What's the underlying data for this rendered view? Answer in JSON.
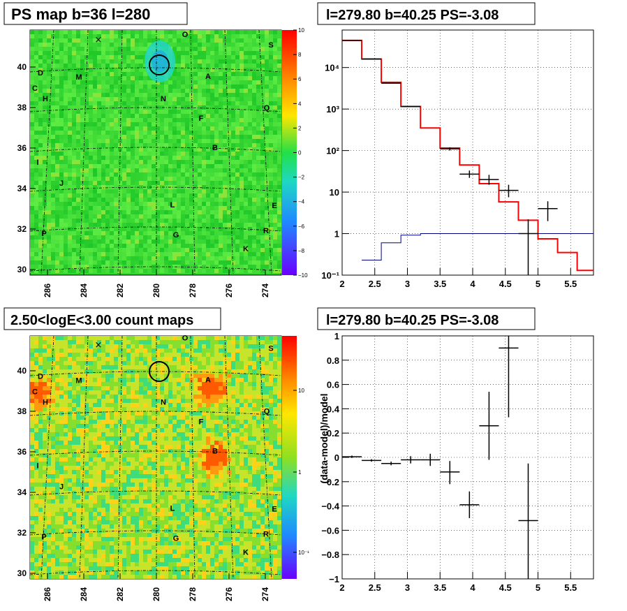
{
  "panels": {
    "top_left": {
      "title": "PS map b=36 l=280",
      "x_ticks": [
        "286",
        "284",
        "282",
        "280",
        "278",
        "276",
        "274"
      ],
      "y_ticks": [
        "30",
        "32",
        "34",
        "36",
        "38",
        "40"
      ],
      "colorbar_ticks": [
        "10",
        "8",
        "6",
        "4",
        "2",
        "0",
        "−2",
        "−4",
        "−6",
        "−8",
        "−10"
      ],
      "colormap": "green background with cyan/blue dip near l=280 b=40.3, slight yellow highlights",
      "source_labels": [
        "O",
        "S",
        "D",
        "M",
        "A",
        "C",
        "H",
        "N",
        "Q",
        "F",
        "B",
        "I",
        "J",
        "L",
        "E",
        "P",
        "G",
        "R",
        "K"
      ]
    },
    "bottom_left": {
      "title": "2.50<logE<3.00 count maps",
      "x_ticks": [
        "286",
        "284",
        "282",
        "280",
        "278",
        "276",
        "274"
      ],
      "y_ticks": [
        "30",
        "32",
        "34",
        "36",
        "38",
        "40"
      ],
      "colorbar_ticks": [
        "10",
        "1",
        "10⁻¹"
      ],
      "colormap": "noisy yellow/green count map with bright orange/red spots at A, B and D/C",
      "source_labels": [
        "O",
        "S",
        "D",
        "M",
        "A",
        "C",
        "H",
        "N",
        "Q",
        "F",
        "B",
        "I",
        "J",
        "L",
        "E",
        "P",
        "G",
        "R",
        "K"
      ]
    }
  },
  "chart_data": [
    {
      "type": "line",
      "panel": "top_right",
      "title": "l=279.80 b=40.25 PS=-3.08",
      "xlabel": "",
      "ylabel": "",
      "xlim": [
        2,
        5.85
      ],
      "ylim": [
        0.1,
        80000
      ],
      "yscale": "log",
      "grid": true,
      "x_ticks": [
        "2",
        "2.5",
        "3",
        "3.5",
        "4",
        "4.5",
        "5",
        "5.5"
      ],
      "y_ticks": [
        "10⁻¹",
        "1",
        "10",
        "10²",
        "10³",
        "10⁴"
      ],
      "series": [
        {
          "color": "#ff0000",
          "style": "step",
          "bin_edges": [
            2,
            2.3,
            2.6,
            2.9,
            3.2,
            3.5,
            3.8,
            4.1,
            4.4,
            4.7,
            5.0,
            5.3,
            5.6,
            5.85
          ],
          "values": [
            45000,
            16000,
            4400,
            1150,
            350,
            115,
            45,
            16,
            5.8,
            2.1,
            0.75,
            0.35,
            0.13
          ]
        },
        {
          "color": "#000080",
          "style": "step",
          "bin_edges": [
            2.3,
            2.6,
            2.9,
            3.2,
            3.5,
            5.85
          ],
          "values": [
            0.23,
            0.6,
            0.92,
            1.0,
            1.0
          ]
        },
        {
          "color": "#000000",
          "style": "errorbar",
          "points": [
            {
              "x": 2.15,
              "y": 45000,
              "xerr": 0.15,
              "ylo": 45000,
              "yhi": 45000
            },
            {
              "x": 2.45,
              "y": 16000,
              "xerr": 0.15,
              "ylo": 16000,
              "yhi": 16000
            },
            {
              "x": 2.75,
              "y": 4200,
              "xerr": 0.15,
              "ylo": 4200,
              "yhi": 4200
            },
            {
              "x": 3.05,
              "y": 1150,
              "xerr": 0.15,
              "ylo": 1150,
              "yhi": 1150
            },
            {
              "x": 3.65,
              "y": 110,
              "xerr": 0.15,
              "ylo": 100,
              "yhi": 120
            },
            {
              "x": 3.95,
              "y": 27,
              "xerr": 0.15,
              "ylo": 22,
              "yhi": 33
            },
            {
              "x": 4.25,
              "y": 20,
              "xerr": 0.15,
              "ylo": 15,
              "yhi": 26
            },
            {
              "x": 4.55,
              "y": 11,
              "xerr": 0.15,
              "ylo": 7.5,
              "yhi": 15
            },
            {
              "x": 4.85,
              "y": 1.0,
              "xerr": 0.15,
              "ylo": 0.1,
              "yhi": 2.2
            },
            {
              "x": 5.15,
              "y": 4,
              "xerr": 0.15,
              "ylo": 2,
              "yhi": 6
            }
          ]
        }
      ]
    },
    {
      "type": "scatter",
      "panel": "bottom_right",
      "title": "l=279.80 b=40.25 PS=-3.08",
      "xlabel": "",
      "ylabel": "(data-model)/model",
      "xlim": [
        2,
        5.85
      ],
      "ylim": [
        -1,
        1
      ],
      "grid": true,
      "x_ticks": [
        "2",
        "2.5",
        "3",
        "3.5",
        "4",
        "4.5",
        "5",
        "5.5"
      ],
      "y_ticks": [
        "−1",
        "−0.8",
        "−0.6",
        "−0.4",
        "−0.2",
        "0",
        "0.2",
        "0.4",
        "0.6",
        "0.8",
        "1"
      ],
      "points": [
        {
          "x": 2.15,
          "y": 0.005,
          "xerr": 0.15,
          "ylo": -0.005,
          "yhi": 0.015
        },
        {
          "x": 2.45,
          "y": -0.025,
          "xerr": 0.15,
          "ylo": -0.035,
          "yhi": -0.015
        },
        {
          "x": 2.75,
          "y": -0.05,
          "xerr": 0.15,
          "ylo": -0.065,
          "yhi": -0.035
        },
        {
          "x": 3.05,
          "y": -0.02,
          "xerr": 0.15,
          "ylo": -0.05,
          "yhi": 0.01
        },
        {
          "x": 3.35,
          "y": -0.02,
          "xerr": 0.15,
          "ylo": -0.07,
          "yhi": 0.03
        },
        {
          "x": 3.65,
          "y": -0.12,
          "xerr": 0.15,
          "ylo": -0.22,
          "yhi": -0.03
        },
        {
          "x": 3.95,
          "y": -0.39,
          "xerr": 0.15,
          "ylo": -0.5,
          "yhi": -0.28
        },
        {
          "x": 4.25,
          "y": 0.26,
          "xerr": 0.15,
          "ylo": -0.02,
          "yhi": 0.54
        },
        {
          "x": 4.55,
          "y": 0.9,
          "xerr": 0.15,
          "ylo": 0.33,
          "yhi": 1.05
        },
        {
          "x": 4.85,
          "y": -0.52,
          "xerr": 0.15,
          "ylo": -1.05,
          "yhi": -0.05
        }
      ]
    }
  ]
}
